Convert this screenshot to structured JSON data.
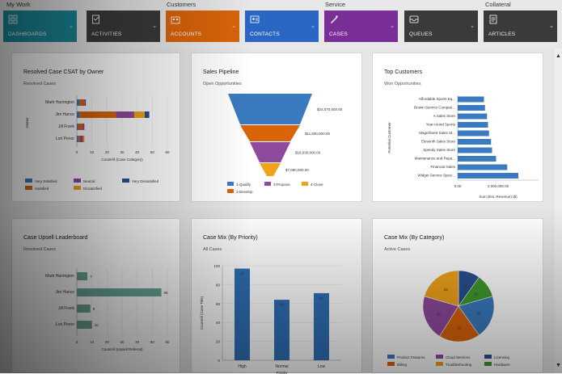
{
  "nav": {
    "groups": [
      "My Work",
      "Customers",
      "Service",
      "Collateral"
    ],
    "tiles": [
      {
        "label": "DASHBOARDS",
        "color": "#1a8a9a",
        "icon": "dashboard-icon"
      },
      {
        "label": "ACTIVITIES",
        "color": "#3a3a3a",
        "icon": "activities-icon"
      },
      {
        "label": "ACCOUNTS",
        "color": "#d9640a",
        "icon": "accounts-icon"
      },
      {
        "label": "CONTACTS",
        "color": "#2a66c4",
        "icon": "contacts-icon"
      },
      {
        "label": "CASES",
        "color": "#7a2f98",
        "icon": "cases-icon"
      },
      {
        "label": "QUEUES",
        "color": "#3a3a3a",
        "icon": "queues-icon"
      },
      {
        "label": "ARTICLES",
        "color": "#3a3a3a",
        "icon": "articles-icon"
      }
    ]
  },
  "panels": {
    "csat": {
      "title": "Resolved Case CSAT by Owner",
      "subtitle": "Resolved Cases"
    },
    "pipeline": {
      "title": "Sales Pipeline",
      "subtitle": "Open Opportunities"
    },
    "customers": {
      "title": "Top Customers",
      "subtitle": "Won Opportunities"
    },
    "upsell": {
      "title": "Case Upsell Leaderboard",
      "subtitle": "Resolved Cases"
    },
    "priority": {
      "title": "Case Mix (By Priority)",
      "subtitle": "All Cases"
    },
    "category": {
      "title": "Case Mix (By Category)",
      "subtitle": "Active Cases"
    }
  },
  "chart_data": [
    {
      "id": "csat",
      "type": "bar",
      "orientation": "horizontal",
      "stacked": true,
      "categories": [
        "Mark Harrington",
        "Jim Hance",
        "Jill Frank",
        "Lori Penor"
      ],
      "series": [
        {
          "name": "Very Satisfied",
          "color": "#3a7bbf",
          "values": [
            2,
            2,
            1,
            1
          ]
        },
        {
          "name": "Satisfied",
          "color": "#d9640a",
          "values": [
            3,
            24,
            3,
            1
          ]
        },
        {
          "name": "Neutral",
          "color": "#8e4a9c",
          "values": [
            1,
            12,
            1,
            2
          ]
        },
        {
          "name": "Dissatisfied",
          "color": "#f0a21a",
          "values": [
            0,
            7,
            0,
            1
          ]
        },
        {
          "name": "Very Dissatisfied",
          "color": "#2a4f8f",
          "values": [
            0,
            3,
            0,
            0
          ]
        }
      ],
      "xlabel": "CountAll (Case Category)",
      "ylabel": "Owner",
      "xticks": [
        "0",
        "10",
        "20",
        "30",
        "40",
        "50",
        "60"
      ],
      "xlim": [
        0,
        60
      ]
    },
    {
      "id": "pipeline",
      "type": "funnel",
      "stages": [
        {
          "name": "1-Qualify",
          "color": "#3a7bbf",
          "value": 24070000,
          "label": "$24,070,000.00"
        },
        {
          "name": "2-Develop",
          "color": "#d9640a",
          "value": 11830000,
          "label": "$11,830,000.00"
        },
        {
          "name": "3-Propose",
          "color": "#8e4a9c",
          "value": 18030000,
          "label": "$18,030,000.00"
        },
        {
          "name": "4-Close",
          "color": "#f0a21a",
          "value": 7090000,
          "label": "$7,090,000.00"
        }
      ]
    },
    {
      "id": "customers",
      "type": "bar",
      "orientation": "horizontal",
      "categories": [
        "Affordable Sports Eq...",
        "Brown Service Compan...",
        "A Sales Store",
        "Year-round Sports",
        "Magnificent Sales St...",
        "Eleventh Sales Store",
        "Speedy Sales Store",
        "Maintenance and Repa...",
        "Financial Sales",
        "Widget Service Speci..."
      ],
      "values": [
        1300000,
        1350000,
        1450000,
        1500000,
        1550000,
        1650000,
        1700000,
        1900000,
        2450000,
        3000000
      ],
      "color": "#3a7bbf",
      "xlabel": "Sum (Est. Revenue) ($)",
      "ylabel": "Potential Customer",
      "xticks": [
        "0.00",
        "2,000,000.00"
      ],
      "xlim": [
        0,
        4000000
      ]
    },
    {
      "id": "upsell",
      "type": "bar",
      "orientation": "horizontal",
      "categories": [
        "Mark Harrington",
        "Jim Hance",
        "Jill Frank",
        "Lori Penor"
      ],
      "values": [
        7,
        56,
        9,
        10
      ],
      "color": "#6aa79a",
      "xlabel": "CountAll (Upsell Referral)",
      "xticks": [
        "0",
        "10",
        "20",
        "30",
        "40",
        "50",
        "60"
      ],
      "xlim": [
        0,
        60
      ]
    },
    {
      "id": "priority",
      "type": "bar",
      "categories": [
        "High",
        "Normal",
        "Low"
      ],
      "values": [
        97,
        64,
        71
      ],
      "color": "#2f6fb5",
      "xlabel": "Priority",
      "ylabel": "CountAll (Case Title)",
      "yticks": [
        "0",
        "20",
        "40",
        "60",
        "80",
        "100"
      ],
      "ylim": [
        0,
        100
      ]
    },
    {
      "id": "category",
      "type": "pie",
      "slices": [
        {
          "name": "Product Features",
          "color": "#3a7bbf",
          "value": 22
        },
        {
          "name": "Billing",
          "color": "#d9640a",
          "value": 21
        },
        {
          "name": "Cloud Services",
          "color": "#8e4a9c",
          "value": 23
        },
        {
          "name": "Troubleshooting",
          "color": "#f0a21a",
          "value": 23
        },
        {
          "name": "Licensing",
          "color": "#2a4f8f",
          "value": 11
        },
        {
          "name": "Hardware",
          "color": "#3f9a2f",
          "value": 12
        }
      ],
      "slice_order": [
        "Licensing",
        "Hardware",
        "Product Features",
        "Billing",
        "Cloud Services",
        "Troubleshooting"
      ]
    }
  ]
}
